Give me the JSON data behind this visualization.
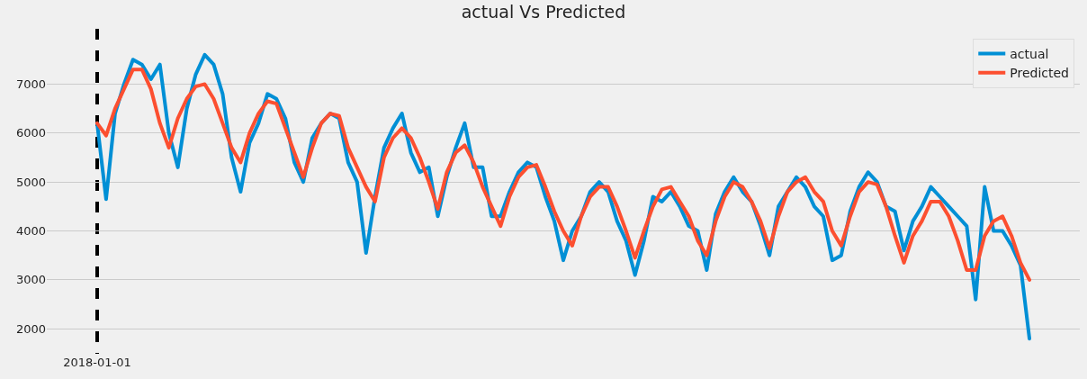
{
  "chart_data": {
    "type": "line",
    "title": "actual Vs Predicted",
    "categories": [
      "2018-01-01",
      null,
      null,
      null,
      null,
      null,
      null,
      null,
      null,
      null,
      null,
      null,
      null,
      null,
      null,
      null,
      null,
      null,
      null,
      null,
      null,
      null,
      null,
      null,
      null,
      null,
      null,
      null,
      null,
      null,
      null,
      null,
      null,
      null,
      null,
      null,
      null,
      null,
      null,
      null,
      null,
      null,
      null,
      null,
      null,
      null,
      null,
      null,
      null,
      null,
      null,
      null,
      null,
      null,
      null,
      null,
      null,
      null,
      null,
      null,
      null,
      null,
      null,
      null,
      null,
      null,
      null,
      null,
      null,
      null,
      null,
      null,
      null,
      null,
      null,
      null,
      null,
      null,
      null,
      null,
      null,
      null,
      null,
      null,
      null,
      null,
      null,
      null,
      null,
      null,
      null,
      null,
      null,
      null,
      null,
      null,
      null,
      null,
      null,
      null,
      null,
      null,
      null,
      null,
      null
    ],
    "series": [
      {
        "name": "actual",
        "color": "#008fd5",
        "values": [
          6200,
          4650,
          6400,
          7000,
          7500,
          7400,
          7100,
          7400,
          6000,
          5300,
          6500,
          7200,
          7600,
          7400,
          6800,
          5500,
          4800,
          5800,
          6200,
          6800,
          6700,
          6300,
          5400,
          5000,
          5900,
          6200,
          6400,
          6300,
          5400,
          5000,
          3550,
          4700,
          5700,
          6100,
          6400,
          5600,
          5200,
          5300,
          4300,
          5100,
          5700,
          6200,
          5300,
          5300,
          4300,
          4300,
          4800,
          5200,
          5400,
          5300,
          4700,
          4200,
          3400,
          4000,
          4300,
          4800,
          5000,
          4800,
          4200,
          3800,
          3100,
          3800,
          4700,
          4600,
          4800,
          4500,
          4100,
          4000,
          3200,
          4350,
          4800,
          5100,
          4800,
          4600,
          4100,
          3500,
          4500,
          4800,
          5100,
          4900,
          4500,
          4300,
          3400,
          3500,
          4400,
          4900,
          5200,
          5000,
          4500,
          4400,
          3600,
          4200,
          4500,
          4900,
          4700,
          4500,
          4300,
          4100,
          2600,
          4900,
          4000,
          4000,
          3700,
          3300,
          1800
        ]
      },
      {
        "name": "Predicted",
        "color": "#fc4f30",
        "values": [
          6200,
          5950,
          6500,
          6900,
          7300,
          7300,
          6900,
          6200,
          5700,
          6300,
          6700,
          6950,
          7000,
          6700,
          6200,
          5700,
          5400,
          6000,
          6400,
          6650,
          6600,
          6100,
          5600,
          5100,
          5700,
          6200,
          6400,
          6350,
          5700,
          5300,
          4900,
          4600,
          5500,
          5900,
          6100,
          5900,
          5500,
          5000,
          4450,
          5200,
          5600,
          5750,
          5400,
          4900,
          4500,
          4100,
          4700,
          5100,
          5300,
          5350,
          4900,
          4400,
          4000,
          3700,
          4300,
          4700,
          4900,
          4900,
          4500,
          4000,
          3450,
          4000,
          4500,
          4850,
          4900,
          4600,
          4300,
          3800,
          3500,
          4200,
          4700,
          5000,
          4900,
          4600,
          4200,
          3650,
          4300,
          4800,
          5000,
          5100,
          4800,
          4600,
          4000,
          3700,
          4300,
          4800,
          5000,
          4950,
          4500,
          3900,
          3350,
          3900,
          4200,
          4600,
          4600,
          4300,
          3800,
          3200,
          3200,
          3900,
          4200,
          4300,
          3900,
          3350,
          3000
        ]
      }
    ],
    "ylim": [
      1490,
      8130
    ],
    "yticks": [
      2000,
      3000,
      4000,
      5000,
      6000,
      7000
    ],
    "grid": true,
    "legend": "top right",
    "line_style": "solid",
    "marker": "none"
  }
}
